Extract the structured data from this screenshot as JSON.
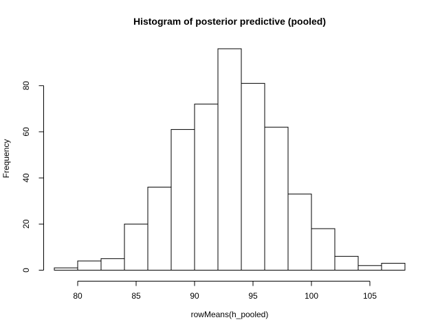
{
  "chart_data": {
    "type": "bar",
    "subtype": "histogram",
    "title": "Histogram of posterior predictive (pooled)",
    "xlabel": "rowMeans(h_pooled)",
    "ylabel": "Frequency",
    "bins": [
      {
        "x0": 78,
        "x1": 80,
        "count": 1
      },
      {
        "x0": 80,
        "x1": 82,
        "count": 4
      },
      {
        "x0": 82,
        "x1": 84,
        "count": 5
      },
      {
        "x0": 84,
        "x1": 86,
        "count": 20
      },
      {
        "x0": 86,
        "x1": 88,
        "count": 36
      },
      {
        "x0": 88,
        "x1": 90,
        "count": 61
      },
      {
        "x0": 90,
        "x1": 92,
        "count": 72
      },
      {
        "x0": 92,
        "x1": 94,
        "count": 96
      },
      {
        "x0": 94,
        "x1": 96,
        "count": 81
      },
      {
        "x0": 96,
        "x1": 98,
        "count": 62
      },
      {
        "x0": 98,
        "x1": 100,
        "count": 33
      },
      {
        "x0": 100,
        "x1": 102,
        "count": 18
      },
      {
        "x0": 102,
        "x1": 104,
        "count": 6
      },
      {
        "x0": 104,
        "x1": 106,
        "count": 2
      },
      {
        "x0": 106,
        "x1": 108,
        "count": 3
      }
    ],
    "x_ticks": [
      80,
      85,
      90,
      95,
      100,
      105
    ],
    "y_ticks": [
      0,
      20,
      40,
      60,
      80
    ],
    "xlim": [
      78,
      108
    ],
    "ylim": [
      0,
      96
    ],
    "grid": false,
    "legend": "none",
    "colors": {
      "bar_fill": "#ffffff",
      "bar_stroke": "#000000",
      "axis": "#000000",
      "background": "#ffffff"
    }
  }
}
